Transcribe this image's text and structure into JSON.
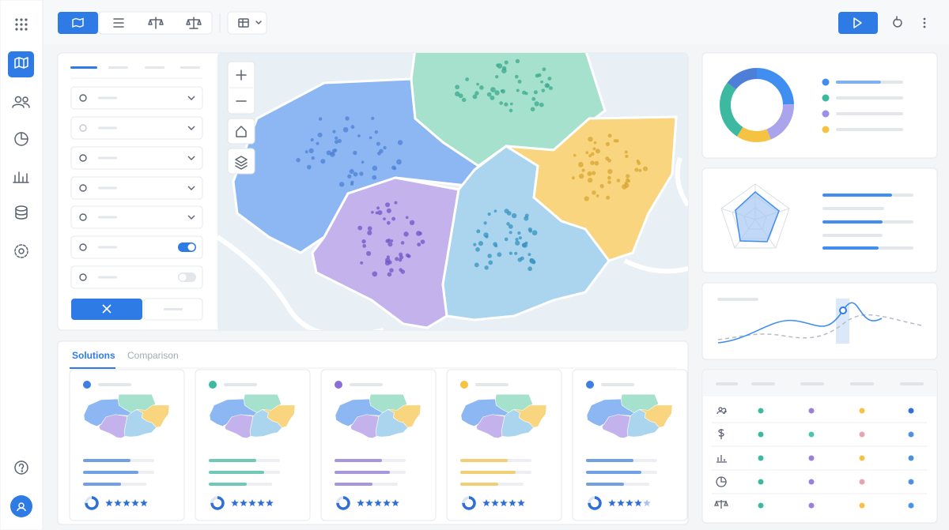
{
  "tabs": {
    "solutions": "Solutions",
    "comparison": "Comparison"
  },
  "solutions": [
    {
      "color": "#3f7fe0",
      "rating": 5
    },
    {
      "color": "#3cb9a0",
      "rating": 5
    },
    {
      "color": "#8a6fd6",
      "rating": 5
    },
    {
      "color": "#f5c242",
      "rating": 5
    },
    {
      "color": "#3f7fe0",
      "rating": 4
    }
  ]
}
